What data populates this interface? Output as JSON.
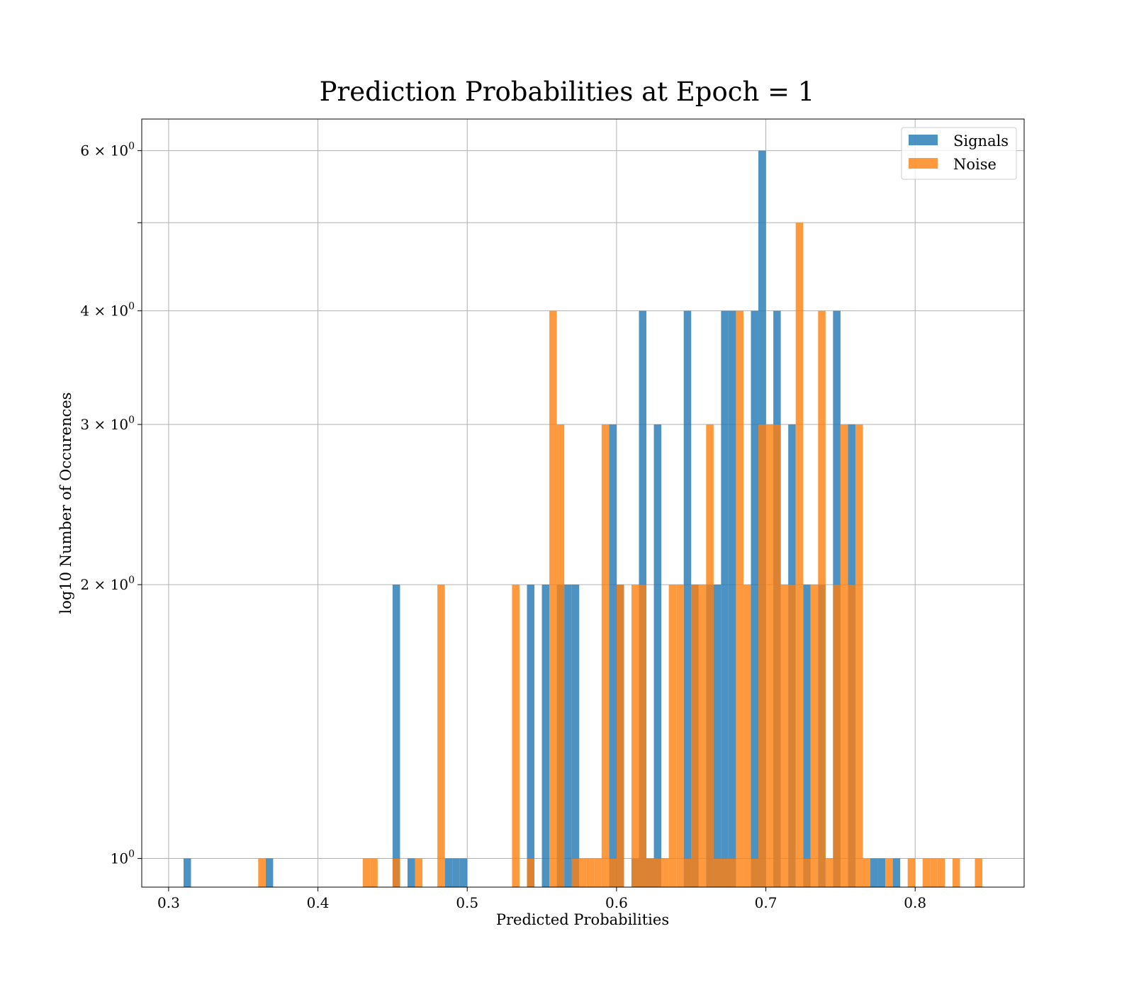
{
  "chart_data": {
    "type": "bar",
    "title": "Prediction Probabilities at Epoch = 1",
    "xlabel": "Predicted Probabilities",
    "ylabel": "log10 Number of Occurences",
    "xlim": [
      0.282,
      0.873
    ],
    "ylim": [
      0.93,
      6.5
    ],
    "y_scale": "log",
    "grid": true,
    "legend_position": "top-right",
    "bin_width": 0.005,
    "x_ticks": [
      {
        "value": 0.3,
        "label": "0.3"
      },
      {
        "value": 0.4,
        "label": "0.4"
      },
      {
        "value": 0.5,
        "label": "0.5"
      },
      {
        "value": 0.6,
        "label": "0.6"
      },
      {
        "value": 0.7,
        "label": "0.7"
      },
      {
        "value": 0.8,
        "label": "0.8"
      }
    ],
    "y_ticks": [
      {
        "value": 1,
        "base": "10",
        "exp": "0"
      },
      {
        "value": 2,
        "base": "2 × 10",
        "exp": "0"
      },
      {
        "value": 3,
        "base": "3 × 10",
        "exp": "0"
      },
      {
        "value": 4,
        "base": "4 × 10",
        "exp": "0"
      },
      {
        "value": 5,
        "base": "",
        "exp": ""
      },
      {
        "value": 6,
        "base": "6 × 10",
        "exp": "0"
      }
    ],
    "series": [
      {
        "name": "Signals",
        "color": "#1f77b4",
        "opacity": 0.8,
        "bins": [
          {
            "x": 0.31,
            "count": 1
          },
          {
            "x": 0.365,
            "count": 1
          },
          {
            "x": 0.45,
            "count": 2
          },
          {
            "x": 0.46,
            "count": 1
          },
          {
            "x": 0.485,
            "count": 1
          },
          {
            "x": 0.49,
            "count": 1
          },
          {
            "x": 0.495,
            "count": 1
          },
          {
            "x": 0.54,
            "count": 2
          },
          {
            "x": 0.55,
            "count": 2
          },
          {
            "x": 0.56,
            "count": 2
          },
          {
            "x": 0.565,
            "count": 2
          },
          {
            "x": 0.57,
            "count": 2
          },
          {
            "x": 0.595,
            "count": 3
          },
          {
            "x": 0.6,
            "count": 2
          },
          {
            "x": 0.61,
            "count": 1
          },
          {
            "x": 0.615,
            "count": 4
          },
          {
            "x": 0.62,
            "count": 1
          },
          {
            "x": 0.625,
            "count": 3
          },
          {
            "x": 0.645,
            "count": 4
          },
          {
            "x": 0.65,
            "count": 2
          },
          {
            "x": 0.66,
            "count": 2
          },
          {
            "x": 0.665,
            "count": 2
          },
          {
            "x": 0.67,
            "count": 4
          },
          {
            "x": 0.675,
            "count": 4
          },
          {
            "x": 0.69,
            "count": 4
          },
          {
            "x": 0.695,
            "count": 6
          },
          {
            "x": 0.705,
            "count": 4
          },
          {
            "x": 0.715,
            "count": 3
          },
          {
            "x": 0.725,
            "count": 2
          },
          {
            "x": 0.735,
            "count": 2
          },
          {
            "x": 0.745,
            "count": 4
          },
          {
            "x": 0.755,
            "count": 3
          },
          {
            "x": 0.77,
            "count": 1
          },
          {
            "x": 0.775,
            "count": 1
          },
          {
            "x": 0.785,
            "count": 1
          }
        ]
      },
      {
        "name": "Noise",
        "color": "#ff7f0e",
        "opacity": 0.8,
        "bins": [
          {
            "x": 0.36,
            "count": 1
          },
          {
            "x": 0.43,
            "count": 1
          },
          {
            "x": 0.435,
            "count": 1
          },
          {
            "x": 0.45,
            "count": 1
          },
          {
            "x": 0.465,
            "count": 1
          },
          {
            "x": 0.48,
            "count": 2
          },
          {
            "x": 0.53,
            "count": 2
          },
          {
            "x": 0.54,
            "count": 1
          },
          {
            "x": 0.555,
            "count": 4
          },
          {
            "x": 0.56,
            "count": 3
          },
          {
            "x": 0.57,
            "count": 1
          },
          {
            "x": 0.575,
            "count": 1
          },
          {
            "x": 0.58,
            "count": 1
          },
          {
            "x": 0.585,
            "count": 1
          },
          {
            "x": 0.59,
            "count": 3
          },
          {
            "x": 0.595,
            "count": 1
          },
          {
            "x": 0.6,
            "count": 2
          },
          {
            "x": 0.61,
            "count": 2
          },
          {
            "x": 0.615,
            "count": 2
          },
          {
            "x": 0.62,
            "count": 1
          },
          {
            "x": 0.625,
            "count": 1
          },
          {
            "x": 0.63,
            "count": 1
          },
          {
            "x": 0.635,
            "count": 2
          },
          {
            "x": 0.64,
            "count": 2
          },
          {
            "x": 0.645,
            "count": 1
          },
          {
            "x": 0.65,
            "count": 2
          },
          {
            "x": 0.655,
            "count": 2
          },
          {
            "x": 0.66,
            "count": 3
          },
          {
            "x": 0.665,
            "count": 1
          },
          {
            "x": 0.67,
            "count": 1
          },
          {
            "x": 0.675,
            "count": 1
          },
          {
            "x": 0.68,
            "count": 4
          },
          {
            "x": 0.685,
            "count": 2
          },
          {
            "x": 0.69,
            "count": 1
          },
          {
            "x": 0.695,
            "count": 3
          },
          {
            "x": 0.7,
            "count": 3
          },
          {
            "x": 0.705,
            "count": 3
          },
          {
            "x": 0.71,
            "count": 2
          },
          {
            "x": 0.715,
            "count": 2
          },
          {
            "x": 0.72,
            "count": 5
          },
          {
            "x": 0.725,
            "count": 1
          },
          {
            "x": 0.73,
            "count": 2
          },
          {
            "x": 0.735,
            "count": 4
          },
          {
            "x": 0.74,
            "count": 1
          },
          {
            "x": 0.745,
            "count": 2
          },
          {
            "x": 0.75,
            "count": 3
          },
          {
            "x": 0.755,
            "count": 2
          },
          {
            "x": 0.76,
            "count": 3
          },
          {
            "x": 0.765,
            "count": 1
          },
          {
            "x": 0.78,
            "count": 1
          },
          {
            "x": 0.795,
            "count": 1
          },
          {
            "x": 0.805,
            "count": 1
          },
          {
            "x": 0.81,
            "count": 1
          },
          {
            "x": 0.815,
            "count": 1
          },
          {
            "x": 0.825,
            "count": 1
          },
          {
            "x": 0.84,
            "count": 1
          }
        ]
      }
    ]
  }
}
